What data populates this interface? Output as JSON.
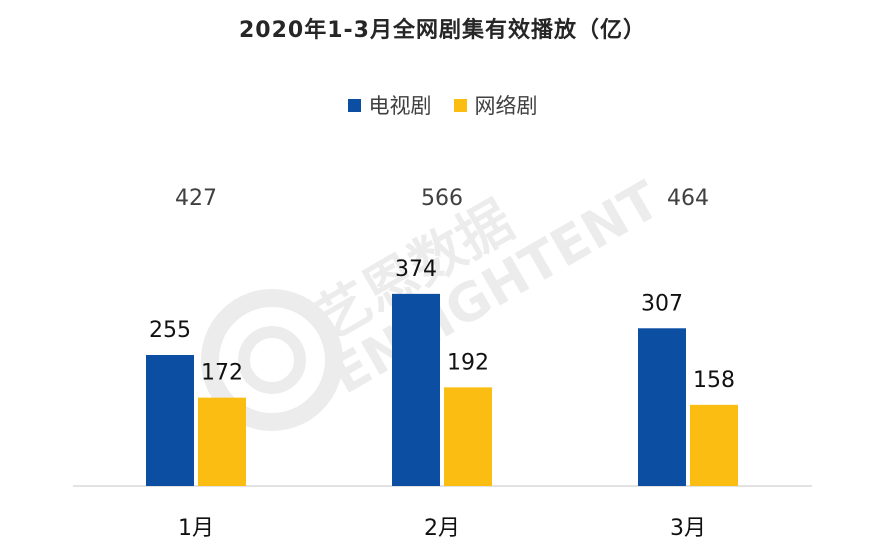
{
  "chart_data": {
    "type": "bar",
    "title": "2020年1-3月全网剧集有效播放（亿）",
    "categories": [
      "1月",
      "2月",
      "3月"
    ],
    "series": [
      {
        "name": "电视剧",
        "color": "#0b4ea2",
        "values": [
          255,
          374,
          307
        ]
      },
      {
        "name": "网络剧",
        "color": "#fbbd12",
        "values": [
          172,
          192,
          158
        ]
      }
    ],
    "totals": [
      427,
      566,
      464
    ],
    "legend_position": "top-center",
    "grid": false,
    "ylim": [
      0,
      600
    ]
  },
  "watermark": {
    "text_cn": "艺恩数据",
    "text_en": "ENLIGHTENT"
  }
}
